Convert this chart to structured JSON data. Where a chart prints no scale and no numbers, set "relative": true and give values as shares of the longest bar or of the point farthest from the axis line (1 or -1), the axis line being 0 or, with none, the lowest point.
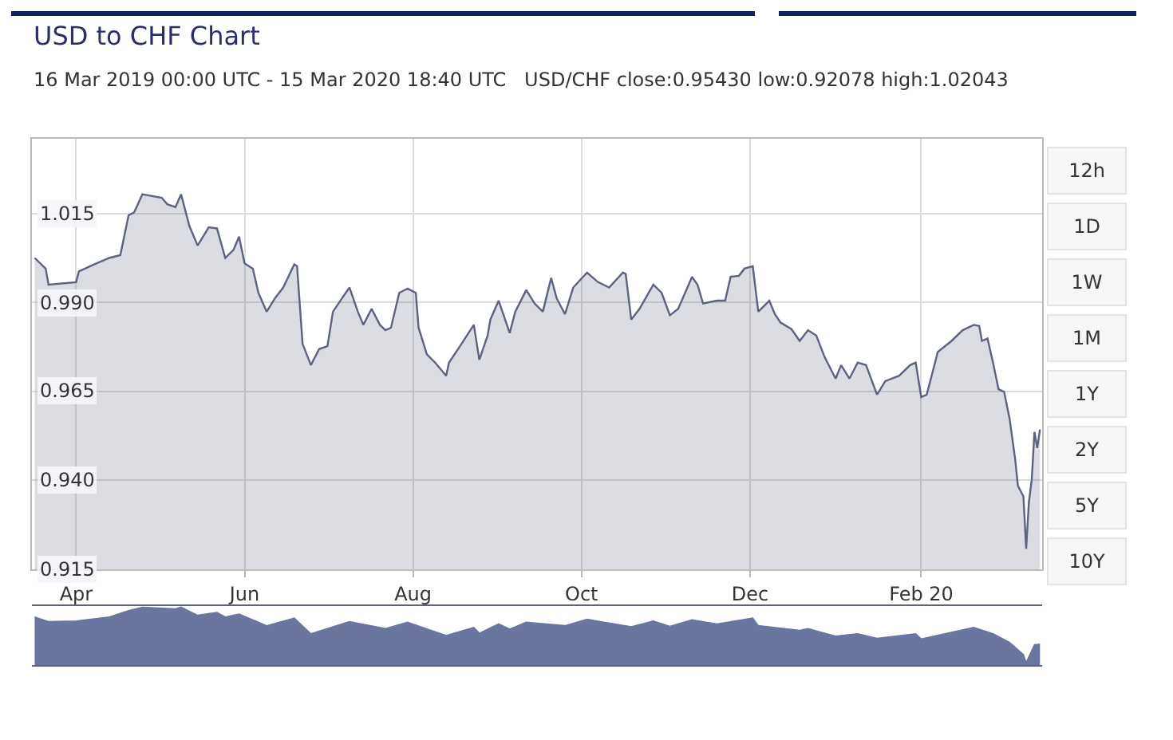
{
  "chart_data": [
    {
      "type": "area",
      "title": "USD to CHF Chart",
      "subtitle": "16 Mar 2019 00:00 UTC - 15 Mar 2020 18:40 UTC   USD/CHF close:0.95430 low:0.92078 high:1.02043",
      "annotations": [
        "12h",
        "1D",
        "1W",
        "1M",
        "1Y",
        "2Y",
        "5Y",
        "10Y"
      ],
      "x": [
        "2019-03-17",
        "2019-03-21",
        "2019-03-22",
        "2019-04-01",
        "2019-04-02",
        "2019-04-07",
        "2019-04-13",
        "2019-04-17",
        "2019-04-20",
        "2019-04-22",
        "2019-04-25",
        "2019-05-02",
        "2019-05-04",
        "2019-05-07",
        "2019-05-09",
        "2019-05-12",
        "2019-05-15",
        "2019-05-19",
        "2019-05-22",
        "2019-05-25",
        "2019-05-28",
        "2019-05-30",
        "2019-06-01",
        "2019-06-04",
        "2019-06-06",
        "2019-06-09",
        "2019-06-12",
        "2019-06-15",
        "2019-06-19",
        "2019-06-20",
        "2019-06-22",
        "2019-06-25",
        "2019-06-28",
        "2019-07-01",
        "2019-07-03",
        "2019-07-07",
        "2019-07-09",
        "2019-07-12",
        "2019-07-14",
        "2019-07-17",
        "2019-07-20",
        "2019-07-22",
        "2019-07-24",
        "2019-07-27",
        "2019-07-30",
        "2019-08-02",
        "2019-08-03",
        "2019-08-06",
        "2019-08-09",
        "2019-08-13",
        "2019-08-14",
        "2019-08-18",
        "2019-08-23",
        "2019-08-25",
        "2019-08-28",
        "2019-08-29",
        "2019-09-01",
        "2019-09-05",
        "2019-09-07",
        "2019-09-11",
        "2019-09-14",
        "2019-09-17",
        "2019-09-20",
        "2019-09-22",
        "2019-09-25",
        "2019-09-28",
        "2019-10-03",
        "2019-10-07",
        "2019-10-11",
        "2019-10-16",
        "2019-10-17",
        "2019-10-19",
        "2019-10-22",
        "2019-10-27",
        "2019-10-30",
        "2019-11-02",
        "2019-11-05",
        "2019-11-10",
        "2019-11-12",
        "2019-11-14",
        "2019-11-19",
        "2019-11-22",
        "2019-11-24",
        "2019-11-27",
        "2019-11-29",
        "2019-12-02",
        "2019-12-04",
        "2019-12-08",
        "2019-12-10",
        "2019-12-12",
        "2019-12-16",
        "2019-12-19",
        "2019-12-22",
        "2019-12-25",
        "2019-12-28",
        "2020-01-01",
        "2020-01-03",
        "2020-01-06",
        "2020-01-09",
        "2020-01-12",
        "2020-01-16",
        "2020-01-19",
        "2020-01-24",
        "2020-01-28",
        "2020-01-30",
        "2020-02-01",
        "2020-02-03",
        "2020-02-07",
        "2020-02-12",
        "2020-02-16",
        "2020-02-20",
        "2020-02-22",
        "2020-02-23",
        "2020-02-25",
        "2020-02-27",
        "2020-02-29",
        "2020-03-02",
        "2020-03-04",
        "2020-03-06",
        "2020-03-07",
        "2020-03-09",
        "2020-03-10",
        "2020-03-11",
        "2020-03-12",
        "2020-03-13",
        "2020-03-14",
        "2020-03-15"
      ],
      "series": [
        {
          "color": "#5b6380",
          "values": [
            1.0025,
            0.9995,
            0.995,
            0.9957,
            0.9987,
            1.0005,
            1.0025,
            1.0033,
            1.0145,
            1.0153,
            1.0204,
            1.0194,
            1.0176,
            1.0168,
            1.0204,
            1.0115,
            1.006,
            1.0111,
            1.0108,
            1.0025,
            1.0048,
            1.0085,
            1.001,
            0.9995,
            0.9927,
            0.9874,
            0.9912,
            0.9942,
            1.0007,
            1.0002,
            0.9784,
            0.9724,
            0.9769,
            0.9777,
            0.9874,
            0.992,
            0.9942,
            0.9874,
            0.9837,
            0.9882,
            0.9837,
            0.9822,
            0.9829,
            0.9927,
            0.9939,
            0.9927,
            0.9829,
            0.9754,
            0.9731,
            0.9694,
            0.9731,
            0.9777,
            0.9837,
            0.9739,
            0.9807,
            0.9852,
            0.9905,
            0.9814,
            0.9874,
            0.9935,
            0.9897,
            0.9874,
            0.9969,
            0.9912,
            0.9867,
            0.9942,
            0.9984,
            0.9957,
            0.9942,
            0.9984,
            0.998,
            0.9852,
            0.9882,
            0.995,
            0.9927,
            0.9864,
            0.9882,
            0.9972,
            0.995,
            0.9897,
            0.9905,
            0.9905,
            0.9972,
            0.9975,
            0.9995,
            1.0002,
            0.9874,
            0.9905,
            0.9867,
            0.9844,
            0.9825,
            0.9792,
            0.9822,
            0.9807,
            0.9747,
            0.9686,
            0.9724,
            0.9686,
            0.9731,
            0.9724,
            0.9641,
            0.9679,
            0.9694,
            0.9724,
            0.9731,
            0.9634,
            0.9641,
            0.9761,
            0.9792,
            0.9822,
            0.9837,
            0.9834,
            0.9792,
            0.9799,
            0.9731,
            0.9656,
            0.9649,
            0.9573,
            0.946,
            0.9385,
            0.9355,
            0.9208,
            0.934,
            0.94,
            0.9536,
            0.9491,
            0.9543
          ]
        }
      ],
      "xlim": [
        "2019-03-16",
        "2020-03-15T18:40"
      ],
      "xticks": [
        {
          "value": "2019-04-01",
          "label": "Apr"
        },
        {
          "value": "2019-06-01",
          "label": "Jun"
        },
        {
          "value": "2019-08-01",
          "label": "Aug"
        },
        {
          "value": "2019-10-01",
          "label": "Oct"
        },
        {
          "value": "2019-12-01",
          "label": "Dec"
        },
        {
          "value": "2020-02-01",
          "label": "Feb 20"
        }
      ],
      "ylim": [
        0.915,
        1.036
      ],
      "yticks": [
        0.915,
        {
          "value": 0.94,
          "label": "0.940"
        },
        0.965,
        {
          "value": 0.99,
          "label": "0.990"
        },
        1.015
      ],
      "grid": true
    },
    {
      "type": "area",
      "relative": true,
      "x": [
        "2019-03-17",
        "2019-03-22",
        "2019-04-01",
        "2019-04-13",
        "2019-04-20",
        "2019-04-25",
        "2019-05-07",
        "2019-05-09",
        "2019-05-15",
        "2019-05-22",
        "2019-05-25",
        "2019-05-30",
        "2019-06-09",
        "2019-06-19",
        "2019-06-25",
        "2019-07-09",
        "2019-07-22",
        "2019-07-30",
        "2019-08-13",
        "2019-08-23",
        "2019-08-25",
        "2019-09-01",
        "2019-09-05",
        "2019-09-11",
        "2019-09-25",
        "2019-10-03",
        "2019-10-19",
        "2019-10-27",
        "2019-11-02",
        "2019-11-10",
        "2019-11-19",
        "2019-12-02",
        "2019-12-04",
        "2019-12-19",
        "2019-12-22",
        "2020-01-01",
        "2020-01-09",
        "2020-01-16",
        "2020-01-30",
        "2020-02-01",
        "2020-02-20",
        "2020-02-27",
        "2020-03-04",
        "2020-03-09",
        "2020-03-10",
        "2020-03-13",
        "2020-03-15"
      ],
      "series": [
        {
          "color": "#6a76a0",
          "values": [
            0.83,
            0.75,
            0.76,
            0.83,
            0.94,
            1,
            0.97,
            1,
            0.86,
            0.91,
            0.83,
            0.88,
            0.68,
            0.81,
            0.54,
            0.75,
            0.63,
            0.74,
            0.51,
            0.65,
            0.55,
            0.71,
            0.62,
            0.74,
            0.68,
            0.79,
            0.66,
            0.76,
            0.67,
            0.78,
            0.71,
            0.81,
            0.68,
            0.6,
            0.63,
            0.5,
            0.54,
            0.46,
            0.54,
            0.45,
            0.65,
            0.54,
            0.39,
            0.18,
            0.04,
            0.35,
            0.36
          ]
        }
      ],
      "xlim": [
        "2019-03-16",
        "2020-03-15T18:40"
      ]
    }
  ]
}
